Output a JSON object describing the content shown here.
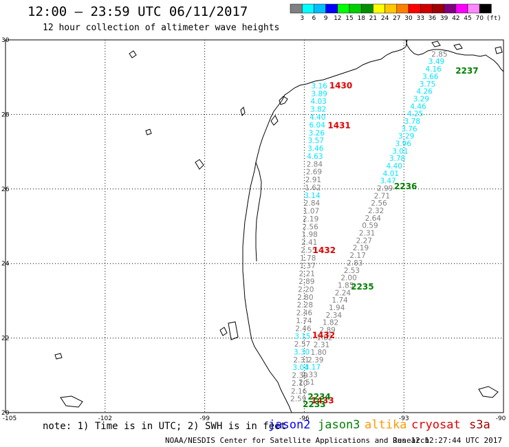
{
  "title": "12:00 – 23:59 UTC 06/11/2017",
  "subtitle": "12 hour collection of altimeter wave heights",
  "legend": {
    "colors": [
      "#808080",
      "#00ffff",
      "#00bfff",
      "#0000ff",
      "#00ff00",
      "#00d000",
      "#009000",
      "#ffff00",
      "#ffc800",
      "#ff8000",
      "#ff0000",
      "#d00000",
      "#a00000",
      "#800080",
      "#ff00ff",
      "#ff88ff",
      "#000000"
    ],
    "labels": [
      "3",
      "6",
      "9",
      "12",
      "15",
      "18",
      "21",
      "24",
      "27",
      "30",
      "33",
      "36",
      "39",
      "42",
      "45",
      "70"
    ],
    "unit": "(ft)"
  },
  "axes": {
    "lon_labels": [
      "-105",
      "-102",
      "-99",
      "-96",
      "-93",
      "-90"
    ],
    "lat_labels": [
      "20",
      "22",
      "24",
      "26",
      "28",
      "30"
    ]
  },
  "tracks": [
    {
      "label": "jason3",
      "points": [
        {
          "lon": -95.55,
          "lat": 28.7,
          "text": "3.16",
          "color": "#00e5ff"
        },
        {
          "lon": -95.55,
          "lat": 28.49,
          "text": "3.89",
          "color": "#00e5ff"
        },
        {
          "lon": -95.57,
          "lat": 28.28,
          "text": "4.03",
          "color": "#00e5ff"
        },
        {
          "lon": -95.58,
          "lat": 28.07,
          "text": "3.82",
          "color": "#00e5ff"
        },
        {
          "lon": -95.6,
          "lat": 27.86,
          "text": "4.40",
          "color": "#00e5ff"
        },
        {
          "lon": -95.61,
          "lat": 27.65,
          "text": "6.04",
          "color": "#00e5ff"
        },
        {
          "lon": -95.63,
          "lat": 27.44,
          "text": "3.26",
          "color": "#00e5ff"
        },
        {
          "lon": -95.65,
          "lat": 27.23,
          "text": "3.57",
          "color": "#00e5ff"
        },
        {
          "lon": -95.66,
          "lat": 27.02,
          "text": "3.46",
          "color": "#00e5ff"
        },
        {
          "lon": -95.68,
          "lat": 26.81,
          "text": "4.63",
          "color": "#00e5ff"
        },
        {
          "lon": -95.69,
          "lat": 26.6,
          "text": "2.84",
          "color": "#808080"
        },
        {
          "lon": -95.71,
          "lat": 26.39,
          "text": "2.69",
          "color": "#808080"
        },
        {
          "lon": -95.73,
          "lat": 26.18,
          "text": "2.91",
          "color": "#808080"
        },
        {
          "lon": -95.74,
          "lat": 25.97,
          "text": "1.62",
          "color": "#808080"
        },
        {
          "lon": -95.76,
          "lat": 25.76,
          "text": "3.14",
          "color": "#00e5ff"
        },
        {
          "lon": -95.77,
          "lat": 25.55,
          "text": "2.84",
          "color": "#808080"
        },
        {
          "lon": -95.79,
          "lat": 25.34,
          "text": "1.07",
          "color": "#808080"
        },
        {
          "lon": -95.81,
          "lat": 25.13,
          "text": "2.19",
          "color": "#808080"
        },
        {
          "lon": -95.82,
          "lat": 24.92,
          "text": "2.56",
          "color": "#808080"
        },
        {
          "lon": -95.84,
          "lat": 24.71,
          "text": "1.98",
          "color": "#808080"
        },
        {
          "lon": -95.85,
          "lat": 24.5,
          "text": "2.41",
          "color": "#808080"
        },
        {
          "lon": -95.87,
          "lat": 24.29,
          "text": "2.55",
          "color": "#808080"
        },
        {
          "lon": -95.89,
          "lat": 24.08,
          "text": "1.78",
          "color": "#808080"
        },
        {
          "lon": -95.9,
          "lat": 23.87,
          "text": "1.37",
          "color": "#808080"
        },
        {
          "lon": -95.92,
          "lat": 23.66,
          "text": "2.21",
          "color": "#808080"
        },
        {
          "lon": -95.93,
          "lat": 23.45,
          "text": "2.89",
          "color": "#808080"
        },
        {
          "lon": -95.95,
          "lat": 23.24,
          "text": "2.20",
          "color": "#808080"
        },
        {
          "lon": -95.97,
          "lat": 23.03,
          "text": "2.80",
          "color": "#808080"
        },
        {
          "lon": -95.98,
          "lat": 22.82,
          "text": "2.28",
          "color": "#808080"
        },
        {
          "lon": -96.0,
          "lat": 22.61,
          "text": "2.46",
          "color": "#808080"
        },
        {
          "lon": -96.01,
          "lat": 22.4,
          "text": "1.74",
          "color": "#808080"
        },
        {
          "lon": -96.03,
          "lat": 22.19,
          "text": "2.46",
          "color": "#808080"
        },
        {
          "lon": -96.05,
          "lat": 21.98,
          "text": "3.15",
          "color": "#00e5ff"
        },
        {
          "lon": -96.06,
          "lat": 21.77,
          "text": "2.57",
          "color": "#808080"
        },
        {
          "lon": -96.08,
          "lat": 21.56,
          "text": "3.30",
          "color": "#00e5ff"
        },
        {
          "lon": -96.09,
          "lat": 21.35,
          "text": "2.31",
          "color": "#808080"
        },
        {
          "lon": -96.11,
          "lat": 21.14,
          "text": "3.04",
          "color": "#00e5ff"
        },
        {
          "lon": -96.13,
          "lat": 20.93,
          "text": "2.39",
          "color": "#808080"
        },
        {
          "lon": -96.14,
          "lat": 20.72,
          "text": "2.10",
          "color": "#808080"
        },
        {
          "lon": -96.16,
          "lat": 20.51,
          "text": "2.16",
          "color": "#808080"
        },
        {
          "lon": -96.18,
          "lat": 20.3,
          "text": "2.59",
          "color": "#808080"
        }
      ]
    },
    {
      "label": "jason3",
      "points": [
        {
          "lon": -91.93,
          "lat": 29.55,
          "text": "2.85",
          "color": "#808080"
        },
        {
          "lon": -92.02,
          "lat": 29.35,
          "text": "3.49",
          "color": "#00e5ff"
        },
        {
          "lon": -92.11,
          "lat": 29.15,
          "text": "4.16",
          "color": "#00e5ff"
        },
        {
          "lon": -92.2,
          "lat": 28.95,
          "text": "3.66",
          "color": "#00e5ff"
        },
        {
          "lon": -92.29,
          "lat": 28.75,
          "text": "3.75",
          "color": "#00e5ff"
        },
        {
          "lon": -92.38,
          "lat": 28.55,
          "text": "4.26",
          "color": "#00e5ff"
        },
        {
          "lon": -92.48,
          "lat": 28.35,
          "text": "3.29",
          "color": "#00e5ff"
        },
        {
          "lon": -92.57,
          "lat": 28.15,
          "text": "4.46",
          "color": "#00e5ff"
        },
        {
          "lon": -92.66,
          "lat": 27.95,
          "text": "4.25",
          "color": "#00e5ff"
        },
        {
          "lon": -92.75,
          "lat": 27.75,
          "text": "3.78",
          "color": "#00e5ff"
        },
        {
          "lon": -92.84,
          "lat": 27.55,
          "text": "3.76",
          "color": "#00e5ff"
        },
        {
          "lon": -92.93,
          "lat": 27.35,
          "text": "3.29",
          "color": "#00e5ff"
        },
        {
          "lon": -93.02,
          "lat": 27.15,
          "text": "3.96",
          "color": "#00e5ff"
        },
        {
          "lon": -93.11,
          "lat": 26.95,
          "text": "3.01",
          "color": "#00e5ff"
        },
        {
          "lon": -93.2,
          "lat": 26.75,
          "text": "3.78",
          "color": "#00e5ff"
        },
        {
          "lon": -93.29,
          "lat": 26.55,
          "text": "4.40",
          "color": "#00e5ff"
        },
        {
          "lon": -93.39,
          "lat": 26.35,
          "text": "4.01",
          "color": "#00e5ff"
        },
        {
          "lon": -93.48,
          "lat": 26.15,
          "text": "3.47",
          "color": "#00e5ff"
        },
        {
          "lon": -93.57,
          "lat": 25.95,
          "text": "2.99",
          "color": "#808080"
        },
        {
          "lon": -93.66,
          "lat": 25.75,
          "text": "2.71",
          "color": "#808080"
        },
        {
          "lon": -93.75,
          "lat": 25.55,
          "text": "2.56",
          "color": "#808080"
        },
        {
          "lon": -93.84,
          "lat": 25.35,
          "text": "2.32",
          "color": "#808080"
        },
        {
          "lon": -93.93,
          "lat": 25.15,
          "text": "2.64",
          "color": "#808080"
        },
        {
          "lon": -94.02,
          "lat": 24.95,
          "text": "0.59",
          "color": "#808080"
        },
        {
          "lon": -94.11,
          "lat": 24.75,
          "text": "2.31",
          "color": "#808080"
        },
        {
          "lon": -94.2,
          "lat": 24.55,
          "text": "2.27",
          "color": "#808080"
        },
        {
          "lon": -94.3,
          "lat": 24.35,
          "text": "2.19",
          "color": "#808080"
        },
        {
          "lon": -94.39,
          "lat": 24.15,
          "text": "2.17",
          "color": "#808080"
        },
        {
          "lon": -94.48,
          "lat": 23.95,
          "text": "2.83",
          "color": "#808080"
        },
        {
          "lon": -94.57,
          "lat": 23.75,
          "text": "2.53",
          "color": "#808080"
        },
        {
          "lon": -94.66,
          "lat": 23.55,
          "text": "2.00",
          "color": "#808080"
        },
        {
          "lon": -94.75,
          "lat": 23.35,
          "text": "1.85",
          "color": "#808080"
        },
        {
          "lon": -94.84,
          "lat": 23.15,
          "text": "2.24",
          "color": "#808080"
        },
        {
          "lon": -94.93,
          "lat": 22.95,
          "text": "1.74",
          "color": "#808080"
        },
        {
          "lon": -95.02,
          "lat": 22.75,
          "text": "1.94",
          "color": "#808080"
        },
        {
          "lon": -95.11,
          "lat": 22.55,
          "text": "2.34",
          "color": "#808080"
        },
        {
          "lon": -95.21,
          "lat": 22.35,
          "text": "1.82",
          "color": "#808080"
        },
        {
          "lon": -95.3,
          "lat": 22.15,
          "text": "2.89",
          "color": "#808080"
        },
        {
          "lon": -95.39,
          "lat": 21.95,
          "text": "1.82",
          "color": "#808080"
        },
        {
          "lon": -95.48,
          "lat": 21.75,
          "text": "2.31",
          "color": "#808080"
        },
        {
          "lon": -95.57,
          "lat": 21.55,
          "text": "1.80",
          "color": "#808080"
        },
        {
          "lon": -95.66,
          "lat": 21.35,
          "text": "2.39",
          "color": "#808080"
        },
        {
          "lon": -95.75,
          "lat": 21.15,
          "text": "3.17",
          "color": "#00e5ff"
        },
        {
          "lon": -95.84,
          "lat": 20.95,
          "text": "2.33",
          "color": "#808080"
        },
        {
          "lon": -95.93,
          "lat": 20.75,
          "text": "2.51",
          "color": "#808080"
        }
      ]
    }
  ],
  "time_labels": [
    {
      "lon": -94.9,
      "lat": 28.7,
      "text": "1430",
      "color": "#e00000"
    },
    {
      "lon": -94.95,
      "lat": 27.63,
      "text": "1431",
      "color": "#e00000"
    },
    {
      "lon": -95.4,
      "lat": 24.28,
      "text": "1432",
      "color": "#e00000"
    },
    {
      "lon": -95.42,
      "lat": 22.0,
      "text": "1432",
      "color": "#e00000"
    },
    {
      "lon": -95.45,
      "lat": 20.25,
      "text": "1433",
      "color": "#e00000"
    },
    {
      "lon": -91.1,
      "lat": 29.1,
      "text": "2237",
      "color": "#008000"
    },
    {
      "lon": -92.95,
      "lat": 26.0,
      "text": "2236",
      "color": "#008000"
    },
    {
      "lon": -94.25,
      "lat": 23.3,
      "text": "2235",
      "color": "#008000"
    },
    {
      "lon": -95.55,
      "lat": 20.35,
      "text": "2234",
      "color": "#008000"
    },
    {
      "lon": -95.7,
      "lat": 20.15,
      "text": "2233",
      "color": "#008000"
    }
  ],
  "note": "note: 1) Time is in UTC; 2) SWH is in feet",
  "missions": [
    {
      "name": "jason2",
      "color": "#0000ff"
    },
    {
      "name": "jason3",
      "color": "#008000"
    },
    {
      "name": "altika",
      "color": "#ff9900"
    },
    {
      "name": "cryosat",
      "color": "#e00000"
    },
    {
      "name": "s3a",
      "color": "#a00000"
    }
  ],
  "footer": {
    "credit": "NOAA/NESDIS Center for Satellite Applications and Research",
    "timestamp": "Jun 12 12:27:44 UTC 2017"
  }
}
